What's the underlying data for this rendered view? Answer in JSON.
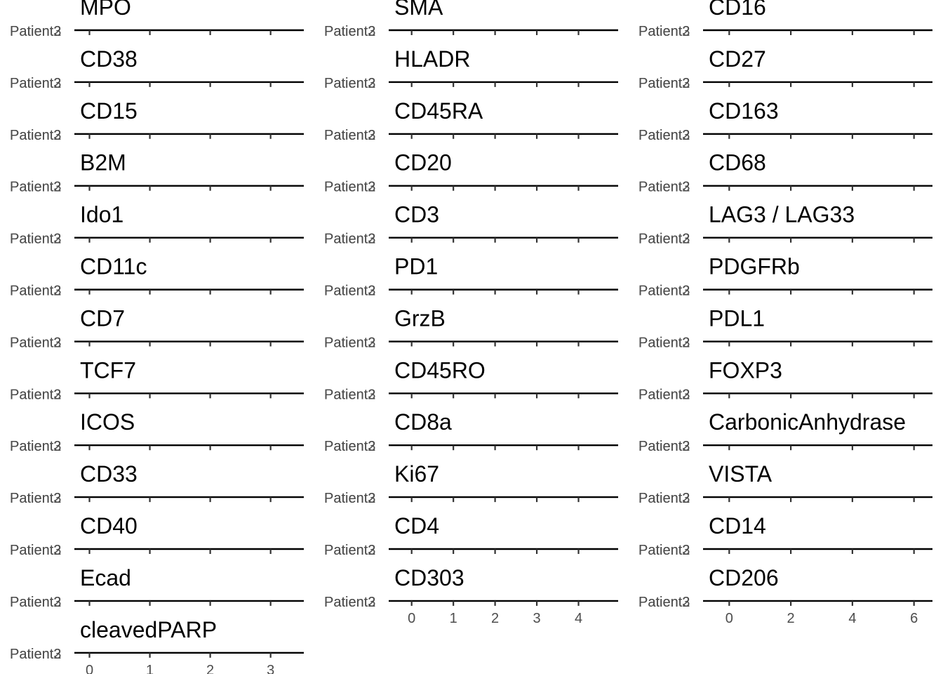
{
  "chart_data": {
    "type": "ridgeline",
    "layout": "facet_wrap by column",
    "grid": false,
    "legend": "none",
    "colors": {
      "axis": "#000000",
      "tick_label": "#4d4d4d",
      "title": "#000000"
    },
    "columns": [
      {
        "xlim": [
          -0.25,
          3.55
        ],
        "xticks": [
          0,
          1,
          2,
          3
        ],
        "xtick_labels": [
          "0",
          "1",
          "2",
          "3"
        ],
        "panels": [
          {
            "title": "MPO",
            "y_categories": [
              "Patient3",
              "Patient2"
            ]
          },
          {
            "title": "CD38",
            "y_categories": [
              "Patient3",
              "Patient2"
            ]
          },
          {
            "title": "CD15",
            "y_categories": [
              "Patient3",
              "Patient2"
            ]
          },
          {
            "title": "B2M",
            "y_categories": [
              "Patient3",
              "Patient2"
            ]
          },
          {
            "title": "Ido1",
            "y_categories": [
              "Patient3",
              "Patient2"
            ]
          },
          {
            "title": "CD11c",
            "y_categories": [
              "Patient3",
              "Patient2"
            ]
          },
          {
            "title": "CD7",
            "y_categories": [
              "Patient3",
              "Patient2"
            ]
          },
          {
            "title": "TCF7",
            "y_categories": [
              "Patient3",
              "Patient2"
            ]
          },
          {
            "title": "ICOS",
            "y_categories": [
              "Patient3",
              "Patient2"
            ]
          },
          {
            "title": "CD33",
            "y_categories": [
              "Patient3",
              "Patient2"
            ]
          },
          {
            "title": "CD40",
            "y_categories": [
              "Patient3",
              "Patient2"
            ]
          },
          {
            "title": "Ecad",
            "y_categories": [
              "Patient3",
              "Patient2"
            ]
          },
          {
            "title": "cleavedPARP",
            "y_categories": [
              "Patient3",
              "Patient2"
            ]
          }
        ]
      },
      {
        "xlim": [
          -0.55,
          4.95
        ],
        "xticks": [
          0,
          1,
          2,
          3,
          4
        ],
        "xtick_labels": [
          "0",
          "1",
          "2",
          "3",
          "4"
        ],
        "panels": [
          {
            "title": "SMA",
            "y_categories": [
              "Patient3",
              "Patient2"
            ]
          },
          {
            "title": "HLADR",
            "y_categories": [
              "Patient3",
              "Patient2"
            ]
          },
          {
            "title": "CD45RA",
            "y_categories": [
              "Patient3",
              "Patient2"
            ]
          },
          {
            "title": "CD20",
            "y_categories": [
              "Patient3",
              "Patient2"
            ]
          },
          {
            "title": "CD3",
            "y_categories": [
              "Patient3",
              "Patient2"
            ]
          },
          {
            "title": "PD1",
            "y_categories": [
              "Patient3",
              "Patient2"
            ]
          },
          {
            "title": "GrzB",
            "y_categories": [
              "Patient3",
              "Patient2"
            ]
          },
          {
            "title": "CD45RO",
            "y_categories": [
              "Patient3",
              "Patient2"
            ]
          },
          {
            "title": "CD8a",
            "y_categories": [
              "Patient3",
              "Patient2"
            ]
          },
          {
            "title": "Ki67",
            "y_categories": [
              "Patient3",
              "Patient2"
            ]
          },
          {
            "title": "CD4",
            "y_categories": [
              "Patient3",
              "Patient2"
            ]
          },
          {
            "title": "CD303",
            "y_categories": [
              "Patient3",
              "Patient2"
            ]
          }
        ]
      },
      {
        "xlim": [
          -0.85,
          6.6
        ],
        "xticks": [
          0,
          2,
          4,
          6
        ],
        "xtick_labels": [
          "0",
          "2",
          "4",
          "6"
        ],
        "panels": [
          {
            "title": "CD16",
            "y_categories": [
              "Patient3",
              "Patient2"
            ]
          },
          {
            "title": "CD27",
            "y_categories": [
              "Patient3",
              "Patient2"
            ]
          },
          {
            "title": "CD163",
            "y_categories": [
              "Patient3",
              "Patient2"
            ]
          },
          {
            "title": "CD68",
            "y_categories": [
              "Patient3",
              "Patient2"
            ]
          },
          {
            "title": "LAG3 / LAG33",
            "y_categories": [
              "Patient3",
              "Patient2"
            ]
          },
          {
            "title": "PDGFRb",
            "y_categories": [
              "Patient3",
              "Patient2"
            ]
          },
          {
            "title": "PDL1",
            "y_categories": [
              "Patient3",
              "Patient2"
            ]
          },
          {
            "title": "FOXP3",
            "y_categories": [
              "Patient3",
              "Patient2"
            ]
          },
          {
            "title": "CarbonicAnhydrase",
            "y_categories": [
              "Patient3",
              "Patient2"
            ]
          },
          {
            "title": "VISTA",
            "y_categories": [
              "Patient3",
              "Patient2"
            ]
          },
          {
            "title": "CD14",
            "y_categories": [
              "Patient3",
              "Patient2"
            ]
          },
          {
            "title": "CD206",
            "y_categories": [
              "Patient3",
              "Patient2"
            ]
          }
        ]
      }
    ]
  }
}
